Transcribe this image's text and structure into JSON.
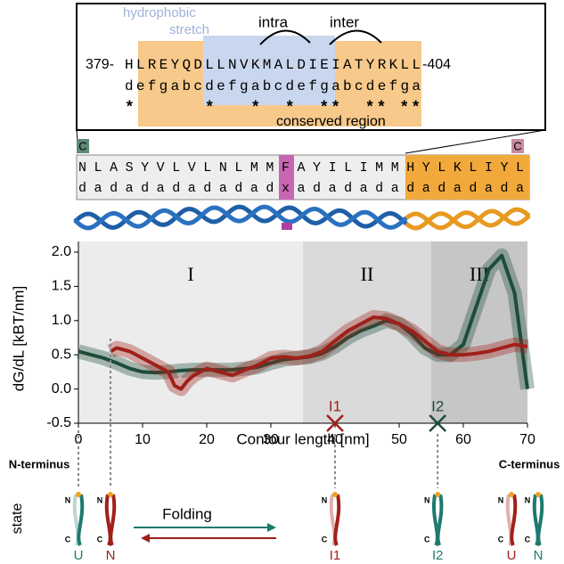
{
  "chart_data": {
    "type": "line",
    "ylabel": "dG/dL [kBT/nm]",
    "xlabel": "Contour length [nm]",
    "xlim": [
      0,
      70
    ],
    "ylim": [
      -0.5,
      2.0
    ],
    "xticks": [
      0,
      10,
      20,
      30,
      40,
      50,
      60,
      70
    ],
    "yticks": [
      -0.5,
      {
        "value": 0,
        "label": "0.0"
      },
      0.5,
      {
        "value": 1,
        "label": "1.0"
      },
      1.5,
      {
        "value": 2,
        "label": "2.0"
      }
    ],
    "regions": [
      {
        "label": "I",
        "range": [
          0,
          35
        ],
        "color": "#ececec"
      },
      {
        "label": "II",
        "range": [
          35,
          55
        ],
        "color": "#dadada"
      },
      {
        "label": "III",
        "range": [
          55,
          70
        ],
        "color": "#c6c6c6"
      }
    ],
    "series": [
      {
        "color": "#1d4d3a",
        "x": [
          0,
          2,
          4,
          6,
          8,
          10,
          12,
          14,
          16,
          18,
          20,
          22,
          24,
          26,
          28,
          30,
          32,
          34,
          36,
          38,
          40,
          42,
          44,
          46,
          48,
          50,
          52,
          54,
          56,
          58,
          60,
          62,
          64,
          66,
          68,
          70
        ],
        "values": [
          0.55,
          0.5,
          0.45,
          0.38,
          0.3,
          0.25,
          0.24,
          0.25,
          0.27,
          0.28,
          0.28,
          0.28,
          0.28,
          0.3,
          0.32,
          0.38,
          0.43,
          0.45,
          0.47,
          0.52,
          0.62,
          0.75,
          0.85,
          0.92,
          1.0,
          0.95,
          0.8,
          0.6,
          0.5,
          0.5,
          0.65,
          1.2,
          1.75,
          1.95,
          1.4,
          0.0
        ]
      },
      {
        "color": "#a0201a",
        "x": [
          5,
          6,
          8,
          10,
          12,
          14,
          15,
          16,
          17,
          18,
          20,
          22,
          24,
          26,
          28,
          30,
          32,
          34,
          36,
          38,
          40,
          42,
          44,
          46,
          48,
          50,
          52,
          54,
          56,
          58,
          60,
          62,
          64,
          66,
          68,
          70
        ],
        "values": [
          0.55,
          0.6,
          0.55,
          0.45,
          0.35,
          0.25,
          0.05,
          0.0,
          0.12,
          0.2,
          0.3,
          0.25,
          0.2,
          0.28,
          0.35,
          0.45,
          0.47,
          0.45,
          0.48,
          0.55,
          0.7,
          0.85,
          0.95,
          1.05,
          1.03,
          0.95,
          0.85,
          0.7,
          0.55,
          0.5,
          0.5,
          0.52,
          0.55,
          0.6,
          0.65,
          0.62
        ]
      }
    ],
    "markers": [
      {
        "label": "I1",
        "x": 40,
        "color": "#a0201a"
      },
      {
        "label": "I2",
        "x": 56,
        "color": "#1d4d3a"
      }
    ]
  },
  "sequence_panel": {
    "start": "379-",
    "end": "-404",
    "sequence": "HLREYQDLLNVKMALDIEIATYRKLL",
    "heptad": "defgabcdefgabcdefgabcdefga",
    "stars": "*      *   *  *  **  ** **",
    "hydrophobic": [
      "hydrophobic",
      "stretch"
    ],
    "intra": "intra",
    "inter": "inter",
    "conserved": "conserved region"
  },
  "strip": {
    "tags": [
      "C",
      "C"
    ],
    "sequence": "NLASYVLVLNLMMFAYILIMMHYLKLIYL",
    "heptad": "dadadadadadadxadadadadadadada"
  },
  "states": {
    "n_terminus": "N-terminus",
    "c_terminus": "C-terminus",
    "row_label": "state",
    "arrow_label": "Folding",
    "labels": [
      "U",
      "N",
      "I1",
      "I2",
      "U",
      "N"
    ],
    "ends": [
      "N",
      "C"
    ]
  }
}
